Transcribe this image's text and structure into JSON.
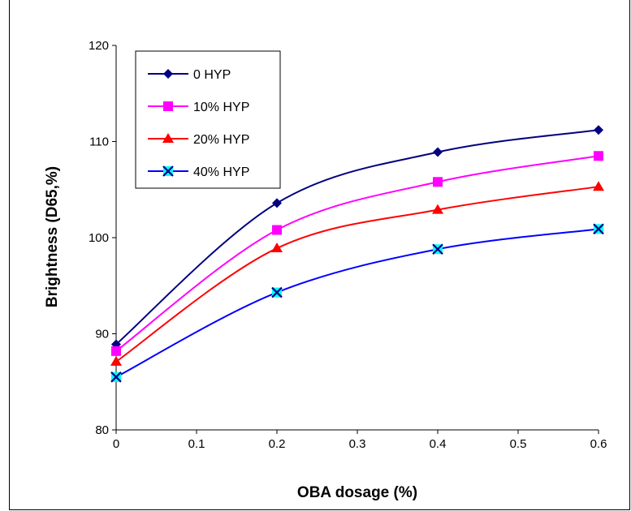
{
  "chart_data": {
    "type": "line",
    "x": [
      0,
      0.2,
      0.4,
      0.6
    ],
    "xlabel": "OBA dosage (%)",
    "ylabel": "Brightness (D65,%)",
    "xlim": [
      0,
      0.6
    ],
    "ylim": [
      80,
      120
    ],
    "xticks": [
      "0",
      "0.1",
      "0.2",
      "0.3",
      "0.4",
      "0.5",
      "0.6"
    ],
    "yticks": [
      "80",
      "90",
      "100",
      "110",
      "120"
    ],
    "grid": false,
    "legend_position": "top-left",
    "series": [
      {
        "name": "0 HYP",
        "values": [
          88.9,
          103.6,
          108.9,
          111.2
        ],
        "color": "#000080",
        "marker": "diamond"
      },
      {
        "name": "10% HYP",
        "values": [
          88.2,
          100.8,
          105.8,
          108.5
        ],
        "color": "#ff00ff",
        "marker": "square"
      },
      {
        "name": "20% HYP",
        "values": [
          87.1,
          98.9,
          102.9,
          105.3
        ],
        "color": "#ff0000",
        "marker": "triangle"
      },
      {
        "name": "40% HYP",
        "values": [
          85.5,
          94.3,
          98.8,
          100.9
        ],
        "color": "#00ffff",
        "marker": "x-box"
      }
    ]
  }
}
